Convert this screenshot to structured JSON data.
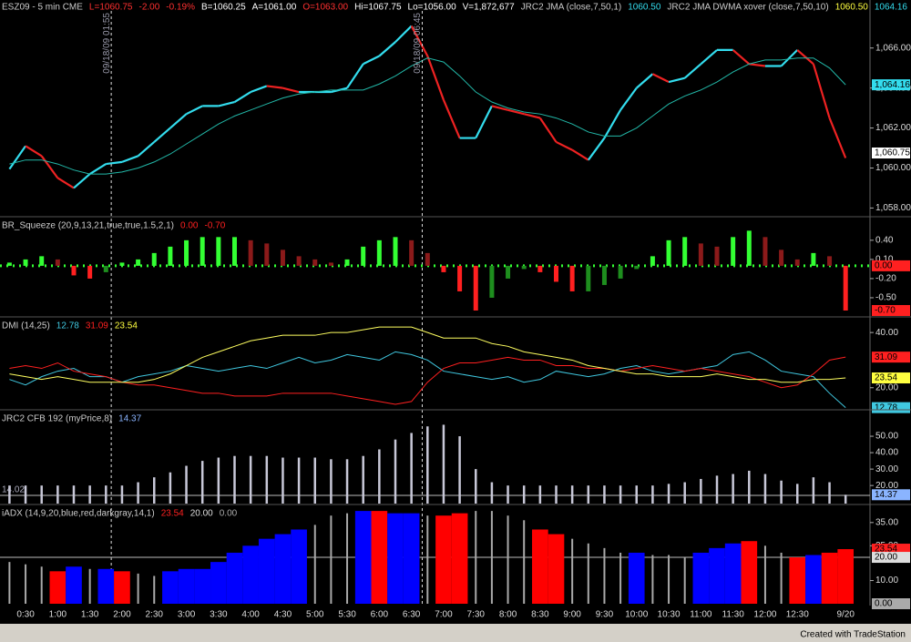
{
  "chart_data": [
    {
      "type": "line",
      "title": "ESZ09 - 5 min CME",
      "quote": [
        {
          "label": "L=1060.75",
          "color": "#ff3030"
        },
        {
          "label": "-2.00",
          "color": "#ff3030"
        },
        {
          "label": "-0.19%",
          "color": "#ff3030"
        },
        {
          "label": "B=1060.25",
          "color": "#ffffff"
        },
        {
          "label": "A=1061.00",
          "color": "#ffffff"
        },
        {
          "label": "O=1063.00",
          "color": "#ff3030"
        },
        {
          "label": "Hi=1067.75",
          "color": "#ffffff"
        },
        {
          "label": "Lo=1056.00",
          "color": "#ffffff"
        },
        {
          "label": "V=1,872,677",
          "color": "#ffffff"
        }
      ],
      "categories": [
        null,
        "0:30",
        null,
        "1:00",
        null,
        "1:30",
        null,
        "2:00",
        null,
        "2:30",
        null,
        "3:00",
        null,
        "3:30",
        null,
        "4:00",
        null,
        "4:30",
        null,
        "5:00",
        null,
        "5:30",
        null,
        "6:00",
        null,
        "6:30",
        null,
        "7:00",
        null,
        "7:30",
        null,
        "8:00",
        null,
        "8:30",
        null,
        "9:00",
        null,
        "9:30",
        null,
        "10:00",
        null,
        "10:30",
        null,
        "11:00",
        null,
        "11:30",
        null,
        "12:00",
        null,
        "12:30",
        null,
        null,
        "9/20"
      ],
      "series": [
        {
          "name": "JRC2 JMA (close,7,50,1)",
          "color": "#33ddee",
          "down_color": "#ee2222",
          "width": 2.2,
          "readouts": [
            {
              "label": "1060.50",
              "color": "#33ddee"
            }
          ],
          "values": [
            1059.95,
            1061.1,
            1060.6,
            1059.5,
            1059.0,
            1059.7,
            1060.2,
            1060.3,
            1060.6,
            1061.3,
            1062.0,
            1062.7,
            1063.1,
            1063.1,
            1063.3,
            1063.8,
            1064.1,
            1064.0,
            1063.8,
            1063.8,
            1063.8,
            1064.0,
            1065.2,
            1065.6,
            1066.3,
            1067.1,
            1065.6,
            1063.4,
            1061.5,
            1061.5,
            1063.1,
            1062.9,
            1062.7,
            1062.5,
            1061.3,
            1060.9,
            1060.4,
            1061.5,
            1062.9,
            1064.0,
            1064.7,
            1064.3,
            1064.5,
            1065.2,
            1065.9,
            1065.9,
            1065.2,
            1065.1,
            1065.1,
            1065.9,
            1065.2,
            1062.5,
            1060.5
          ]
        },
        {
          "name": "JRC2 JMA DWMA xover (close,7,50,10)",
          "color": "#22b8a8",
          "width": 1,
          "readouts": [
            {
              "label": "1060.50",
              "color": "#ffff40"
            },
            {
              "label": "1064.16",
              "color": "#33ddee"
            }
          ],
          "values": [
            1060.2,
            1060.4,
            1060.4,
            1060.2,
            1059.9,
            1059.7,
            1059.7,
            1059.8,
            1060.0,
            1060.3,
            1060.7,
            1061.2,
            1061.7,
            1062.2,
            1062.6,
            1062.9,
            1063.2,
            1063.5,
            1063.7,
            1063.8,
            1063.9,
            1063.9,
            1063.9,
            1064.2,
            1064.6,
            1065.1,
            1065.5,
            1065.3,
            1064.6,
            1063.8,
            1063.3,
            1063.0,
            1062.8,
            1062.7,
            1062.5,
            1062.2,
            1061.8,
            1061.6,
            1061.6,
            1062.0,
            1062.6,
            1063.2,
            1063.6,
            1063.9,
            1064.3,
            1064.8,
            1065.2,
            1065.4,
            1065.4,
            1065.5,
            1065.5,
            1065.0,
            1064.16
          ]
        }
      ],
      "ylim": [
        1057.7,
        1068.4
      ],
      "yticks": [
        {
          "value": 1058,
          "label": "1,058.00"
        },
        {
          "value": 1060,
          "label": "1,060.00"
        },
        {
          "value": 1062,
          "label": "1,062.00"
        },
        {
          "value": 1064,
          "label": "1,064.00"
        },
        {
          "value": 1066,
          "label": "1,066.00"
        }
      ],
      "price_labels": [
        {
          "value": 1064.16,
          "label": "1,064.16",
          "color": "#33ddee"
        },
        {
          "value": 1060.75,
          "label": "1,060.75",
          "color": "#ffffff"
        }
      ],
      "markers": [
        {
          "at": 6.33,
          "label": "09/18/09 01:55"
        },
        {
          "at": 25.67,
          "label": "09/18/09 06:45"
        }
      ]
    },
    {
      "type": "bar",
      "title": "BR_Squeeze (20,9,13,21,true,true,1.5,2,1)",
      "readouts": [
        {
          "value": 0,
          "label": "0.00",
          "color": "#ff2020"
        },
        {
          "value": -0.7,
          "label": "-0.70",
          "color": "#ff2020"
        }
      ],
      "series": [
        {
          "colors": {
            "rising_positive": "#33ff33",
            "falling_positive": "#8b1a1a",
            "falling_negative": "#ff2020",
            "rising_negative": "#1e8e1e"
          },
          "values": [
            0.05,
            0.1,
            0.15,
            0.1,
            -0.15,
            -0.2,
            -0.1,
            0.05,
            0.1,
            0.2,
            0.3,
            0.4,
            0.45,
            0.45,
            0.45,
            0.4,
            0.35,
            0.25,
            0.15,
            0.1,
            0.05,
            0.1,
            0.3,
            0.4,
            0.45,
            0.4,
            0.2,
            -0.1,
            -0.4,
            -0.7,
            -0.5,
            -0.2,
            -0.05,
            -0.1,
            -0.25,
            -0.4,
            -0.4,
            -0.3,
            -0.2,
            -0.05,
            0.15,
            0.4,
            0.45,
            0.35,
            0.3,
            0.45,
            0.55,
            0.45,
            0.25,
            0.1,
            0.2,
            0.15,
            -0.7
          ]
        }
      ],
      "ylim": [
        -0.8,
        0.74
      ],
      "yticks": [
        {
          "value": 0.4,
          "label": "0.40"
        },
        {
          "value": 0.1,
          "label": "0.10"
        },
        {
          "value": -0.2,
          "label": "-0.20"
        },
        {
          "value": -0.5,
          "label": "-0.50"
        }
      ]
    },
    {
      "type": "line",
      "title": "DMI (14,25)",
      "readouts": [
        {
          "value": 12.78,
          "label": "12.78",
          "color": "#40c8e0"
        },
        {
          "value": 31.09,
          "label": "31.09",
          "color": "#ff2020"
        },
        {
          "value": 23.54,
          "label": "23.54",
          "color": "#ffff40"
        }
      ],
      "series": [
        {
          "color": "#40c8e0",
          "width": 1,
          "values": [
            23,
            21,
            24,
            26,
            27,
            24,
            24,
            22,
            24,
            25,
            26,
            28,
            27,
            26,
            27,
            28,
            27,
            29,
            31,
            29,
            30,
            32,
            31,
            30,
            33,
            32,
            30,
            26,
            25,
            24,
            23,
            24,
            22,
            23,
            26,
            25,
            24,
            25,
            27,
            28,
            26,
            25,
            26,
            27,
            28,
            32,
            33,
            30,
            26,
            25,
            24,
            18,
            12.78
          ]
        },
        {
          "color": "#ff2020",
          "width": 1,
          "values": [
            27,
            28,
            27,
            29,
            26,
            25,
            24,
            22,
            21,
            21,
            20,
            19,
            18,
            18,
            17,
            17,
            17,
            18,
            18,
            18,
            18,
            17,
            16,
            15,
            14,
            15,
            22,
            27,
            29,
            29,
            30,
            31,
            30,
            30,
            28,
            28,
            27,
            27,
            26,
            27,
            28,
            27,
            26,
            27,
            26,
            25,
            24,
            22,
            20,
            21,
            25,
            30,
            31.09
          ]
        },
        {
          "color": "#ffff60",
          "width": 1,
          "values": [
            25,
            24,
            23,
            24,
            23,
            22,
            22,
            22,
            22,
            23,
            25,
            28,
            31,
            33,
            35,
            37,
            38,
            39,
            39,
            39,
            40,
            40,
            41,
            42,
            42,
            42,
            40,
            38,
            38,
            38,
            36,
            35,
            33,
            32,
            31,
            30,
            28,
            27,
            26,
            25,
            25,
            24,
            24,
            24,
            25,
            24,
            23,
            23,
            22,
            22,
            23,
            23,
            23.54
          ]
        }
      ],
      "ylim": [
        12,
        45
      ],
      "yticks": [
        {
          "value": 40,
          "label": "40.00"
        },
        {
          "value": 20,
          "label": "20.00"
        }
      ]
    },
    {
      "type": "bar",
      "title": "JRC2 CFB 192 (myPrice,8)",
      "readouts": [
        {
          "value": 14.37,
          "label": "14.37",
          "color": "#8ab4ff"
        }
      ],
      "ref_line": {
        "value": 14.02,
        "label": "14.02"
      },
      "series": [
        {
          "color": "#c8c8d8",
          "values": [
            20,
            20,
            20,
            20,
            20,
            20,
            20,
            20,
            22,
            25,
            28,
            32,
            35,
            37,
            38,
            38,
            38,
            37,
            37,
            37,
            36,
            36,
            38,
            42,
            48,
            52,
            56,
            57,
            50,
            30,
            22,
            20,
            20,
            20,
            20,
            20,
            20,
            20,
            20,
            20,
            20,
            21,
            22,
            24,
            26,
            27,
            29,
            27,
            23,
            21,
            25,
            22,
            14.37
          ]
        }
      ],
      "ylim": [
        9,
        65
      ],
      "yticks": [
        {
          "value": 50,
          "label": "50.00"
        },
        {
          "value": 40,
          "label": "40.00"
        },
        {
          "value": 30,
          "label": "30.00"
        },
        {
          "value": 20,
          "label": "20.00"
        }
      ]
    },
    {
      "type": "bar",
      "title": "iADX (14,9,20,blue,red,darkgray,14,1)",
      "readouts": [
        {
          "value": 23.54,
          "label": "23.54",
          "color": "#ff2020"
        },
        {
          "value": 20,
          "label": "20.00",
          "color": "#dddddd"
        },
        {
          "value": 0,
          "label": "0.00",
          "color": "#aaaaaa"
        }
      ],
      "ref_line": {
        "value": 20
      },
      "series": [
        {
          "thin_color": "darkgray",
          "bar_colors": [
            "darkgray",
            "darkgray",
            "darkgray",
            "red",
            "blue",
            "darkgray",
            "blue",
            "red",
            "darkgray",
            "darkgray",
            "blue",
            "blue",
            "blue",
            "blue",
            "blue",
            "blue",
            "blue",
            "blue",
            "blue",
            "darkgray",
            "darkgray",
            "darkgray",
            "blue",
            "red",
            "blue",
            "blue",
            "darkgray",
            "red",
            "red",
            "darkgray",
            "darkgray",
            "darkgray",
            "darkgray",
            "red",
            "red",
            "darkgray",
            "darkgray",
            "darkgray",
            "darkgray",
            "blue",
            "darkgray",
            "darkgray",
            "darkgray",
            "blue",
            "blue",
            "blue",
            "red",
            "darkgray",
            "darkgray",
            "red",
            "blue",
            "red",
            "red"
          ],
          "values": [
            18,
            17,
            16,
            14,
            16,
            15,
            15,
            14,
            13,
            12,
            14,
            15,
            15,
            18,
            22,
            25,
            28,
            30,
            32,
            34,
            38,
            39,
            40,
            40,
            39,
            39,
            38,
            38,
            39,
            40,
            40,
            38,
            36,
            32,
            30,
            28,
            26,
            24,
            22,
            22,
            21,
            21,
            20,
            22,
            24,
            26,
            27,
            25,
            22,
            20,
            21,
            22,
            23.54
          ]
        }
      ],
      "ylim": [
        0,
        42
      ],
      "yticks": [
        {
          "value": 35,
          "label": "35.00"
        },
        {
          "value": 25,
          "label": "25.00"
        },
        {
          "value": 10,
          "label": "10.00"
        }
      ]
    }
  ],
  "footer": "Created with TradeStation"
}
